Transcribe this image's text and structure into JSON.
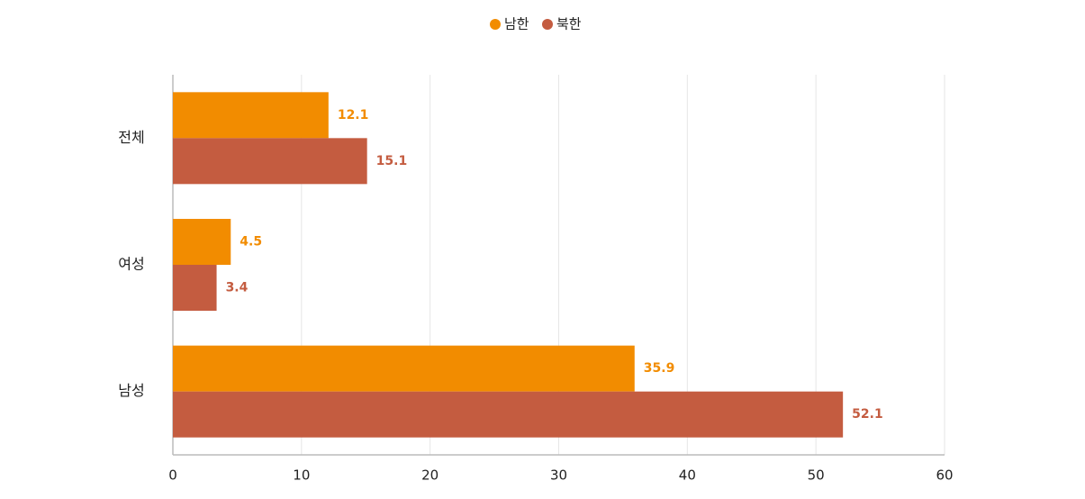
{
  "chart_data": {
    "type": "bar",
    "orientation": "horizontal",
    "categories": [
      "전체",
      "여성",
      "남성"
    ],
    "series": [
      {
        "name": "남한",
        "color": "#f28c00",
        "values": [
          12.1,
          4.5,
          35.9
        ]
      },
      {
        "name": "북한",
        "color": "#c45c40",
        "values": [
          15.1,
          3.4,
          52.1
        ]
      }
    ],
    "xlim": [
      0,
      60
    ],
    "xticks": [
      0,
      10,
      20,
      30,
      40,
      50,
      60
    ],
    "grid": true,
    "legend": "top"
  }
}
